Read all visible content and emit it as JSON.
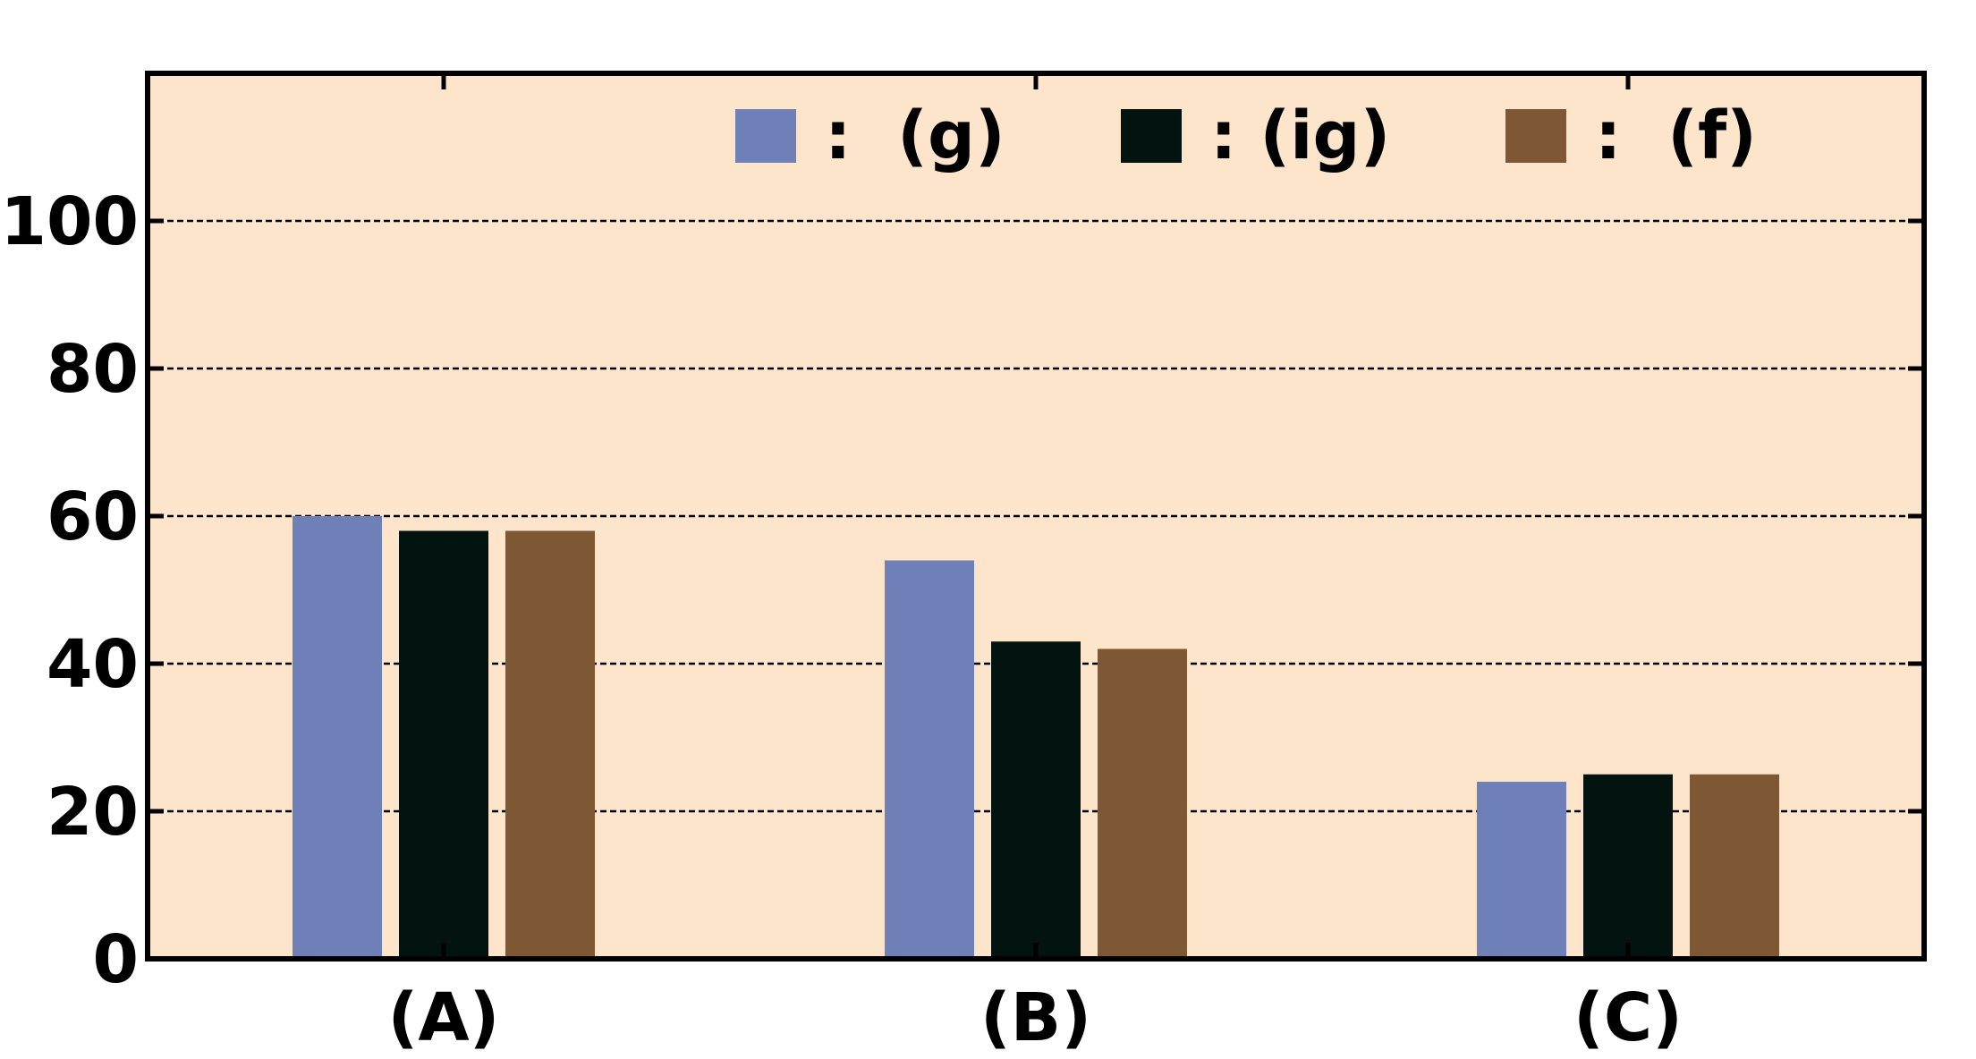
{
  "chart_data": {
    "type": "bar",
    "categories": [
      "(A)",
      "(B)",
      "(C)"
    ],
    "series": [
      {
        "name": ":  (g)",
        "color": "#6f80b8",
        "values": [
          60,
          54,
          24
        ]
      },
      {
        "name": ": (ig)",
        "color": "#031410",
        "values": [
          58,
          43,
          25
        ]
      },
      {
        "name": ":  (f)",
        "color": "#7e5734",
        "values": [
          58,
          42,
          25
        ]
      }
    ],
    "title": "",
    "xlabel": "",
    "ylabel": "",
    "ylim": [
      0,
      120
    ],
    "yticks": [
      0,
      20,
      40,
      60,
      80,
      100
    ],
    "grid": true,
    "legend_position": "top-right",
    "plot_background": "#fde5cb"
  }
}
